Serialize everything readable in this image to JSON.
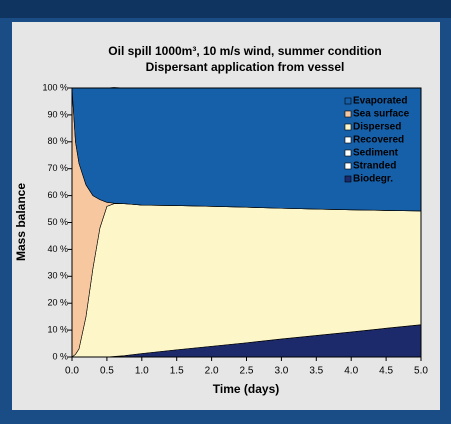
{
  "chart_data": {
    "type": "stacked_area",
    "title": "Oil spill 1000m³, 10 m/s wind, summer condition",
    "subtitle": "Dispersant application from  vessel",
    "y_label": "Mass balance",
    "x_label": "Time (days)",
    "x": [
      0,
      0.05,
      0.1,
      0.2,
      0.3,
      0.4,
      0.5,
      0.6,
      0.75,
      1,
      1.5,
      2,
      2.5,
      3,
      3.5,
      4,
      4.5,
      5
    ],
    "series": [
      {
        "name": "Evaporated",
        "color": "#1660aa",
        "values": [
          0,
          20,
          28,
          36,
          40,
          41.5,
          42.5,
          43,
          43,
          43.5,
          43.7,
          44,
          44.3,
          44.7,
          45,
          45.3,
          45.5,
          45.7
        ]
      },
      {
        "name": "Sea surface",
        "color": "#f7c8a0",
        "values": [
          100,
          79,
          69,
          49,
          27,
          10.5,
          1.5,
          0.2,
          0,
          0,
          0,
          0,
          0,
          0,
          0,
          0,
          0,
          0
        ]
      },
      {
        "name": "Dispersed",
        "color": "#fdf6c9",
        "values": [
          0,
          1,
          3,
          15,
          33,
          48,
          56,
          56.8,
          56.5,
          55.2,
          53.6,
          52,
          50.4,
          48.6,
          47,
          45.4,
          43.8,
          42.3
        ]
      },
      {
        "name": "Recovered",
        "color": "#ffffff",
        "values": [
          0,
          0,
          0,
          0,
          0,
          0,
          0,
          0,
          0,
          0,
          0,
          0,
          0,
          0,
          0,
          0,
          0,
          0
        ]
      },
      {
        "name": "Sediment",
        "color": "#ffffff",
        "values": [
          0,
          0,
          0,
          0,
          0,
          0,
          0,
          0,
          0,
          0,
          0,
          0,
          0,
          0,
          0,
          0,
          0,
          0
        ]
      },
      {
        "name": "Stranded",
        "color": "#ffffff",
        "values": [
          0,
          0,
          0,
          0,
          0,
          0,
          0,
          0,
          0,
          0,
          0,
          0,
          0,
          0,
          0,
          0,
          0,
          0
        ]
      },
      {
        "name": "Biodegr.",
        "color": "#1c2a6c",
        "values": [
          0,
          0,
          0,
          0,
          0,
          0,
          0,
          0.2,
          0.5,
          1.3,
          2.7,
          4,
          5.3,
          6.7,
          8,
          9.3,
          10.7,
          12
        ]
      }
    ],
    "xlim": [
      0,
      5
    ],
    "xticks": [
      {
        "value": 0,
        "label": "0.0"
      },
      0.5,
      {
        "value": 1,
        "label": "1.0"
      },
      1.5,
      {
        "value": 2,
        "label": "2.0"
      },
      2.5,
      {
        "value": 3,
        "label": "3.0"
      },
      3.5,
      {
        "value": 4,
        "label": "4.0"
      },
      4.5,
      {
        "value": 5,
        "label": "5.0"
      }
    ],
    "ylim": [
      0,
      100
    ],
    "yticks": [
      {
        "value": 0,
        "label": "0 %"
      },
      {
        "value": 10,
        "label": "10 %"
      },
      {
        "value": 20,
        "label": "20 %"
      },
      {
        "value": 30,
        "label": "30 %"
      },
      {
        "value": 40,
        "label": "40 %"
      },
      {
        "value": 50,
        "label": "50 %"
      },
      {
        "value": 60,
        "label": "60 %"
      },
      {
        "value": 70,
        "label": "70 %"
      },
      {
        "value": 80,
        "label": "80 %"
      },
      {
        "value": 90,
        "label": "90 %"
      },
      {
        "value": 100,
        "label": "100 %"
      }
    ],
    "legend": "top-right"
  }
}
